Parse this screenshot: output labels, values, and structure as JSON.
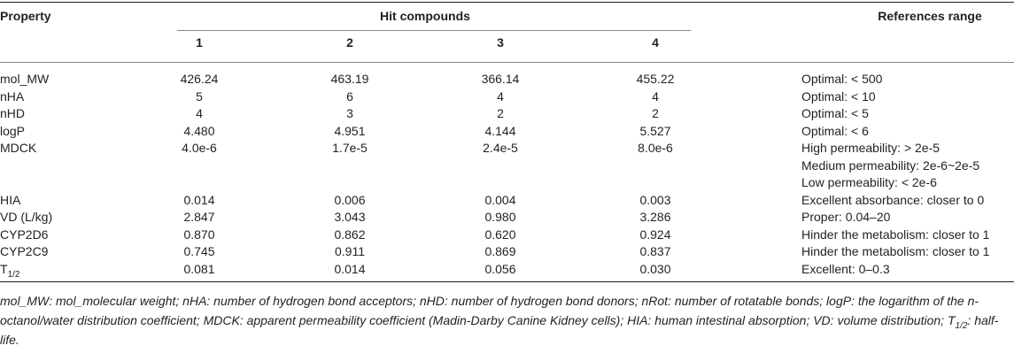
{
  "table": {
    "header": {
      "property": "Property",
      "group": "Hit compounds",
      "compounds": [
        "1",
        "2",
        "3",
        "4"
      ],
      "reference": "References range"
    },
    "rows": [
      {
        "property": "mol_MW",
        "values": [
          "426.24",
          "463.19",
          "366.14",
          "455.22"
        ],
        "reference": [
          "Optimal: < 500"
        ]
      },
      {
        "property": "nHA",
        "values": [
          "5",
          "6",
          "4",
          "4"
        ],
        "reference": [
          "Optimal: < 10"
        ]
      },
      {
        "property": "nHD",
        "values": [
          "4",
          "3",
          "2",
          "2"
        ],
        "reference": [
          "Optimal: < 5"
        ]
      },
      {
        "property": "logP",
        "values": [
          "4.480",
          "4.951",
          "4.144",
          "5.527"
        ],
        "reference": [
          "Optimal: < 6"
        ]
      },
      {
        "property": "MDCK",
        "values": [
          "4.0e-6",
          "1.7e-5",
          "2.4e-5",
          "8.0e-6"
        ],
        "reference": [
          "High permeability: > 2e-5",
          "Medium permeability: 2e-6~2e-5",
          "Low permeability: < 2e-6"
        ]
      },
      {
        "property": "HIA",
        "values": [
          "0.014",
          "0.006",
          "0.004",
          "0.003"
        ],
        "reference": [
          "Excellent absorbance: closer to 0"
        ]
      },
      {
        "property": "VD (L/kg)",
        "values": [
          "2.847",
          "3.043",
          "0.980",
          "3.286"
        ],
        "reference": [
          "Proper: 0.04–20"
        ]
      },
      {
        "property": "CYP2D6",
        "values": [
          "0.870",
          "0.862",
          "0.620",
          "0.924"
        ],
        "reference": [
          "Hinder the metabolism: closer to 1"
        ]
      },
      {
        "property": "CYP2C9",
        "values": [
          "0.745",
          "0.911",
          "0.869",
          "0.837"
        ],
        "reference": [
          "Hinder the metabolism: closer to 1"
        ]
      },
      {
        "property": {
          "text": "T",
          "sub": "1/2"
        },
        "values": [
          "0.081",
          "0.014",
          "0.056",
          "0.030"
        ],
        "reference": [
          "Excellent: 0–0.3"
        ]
      }
    ]
  },
  "footnote": {
    "before": "mol_MW: mol_molecular weight; nHA: number of hydrogen bond acceptors; nHD: number of hydrogen bond donors; nRot: number of rotatable bonds; logP: the logarithm of the n-octanol/water distribution coefficient; MDCK: apparent permeability coefficient (Madin-Darby Canine Kidney cells); HIA: human intestinal absorption; VD: volume distribution; ",
    "symbol": "T",
    "sub": "1/2",
    "after": ": half-life."
  }
}
